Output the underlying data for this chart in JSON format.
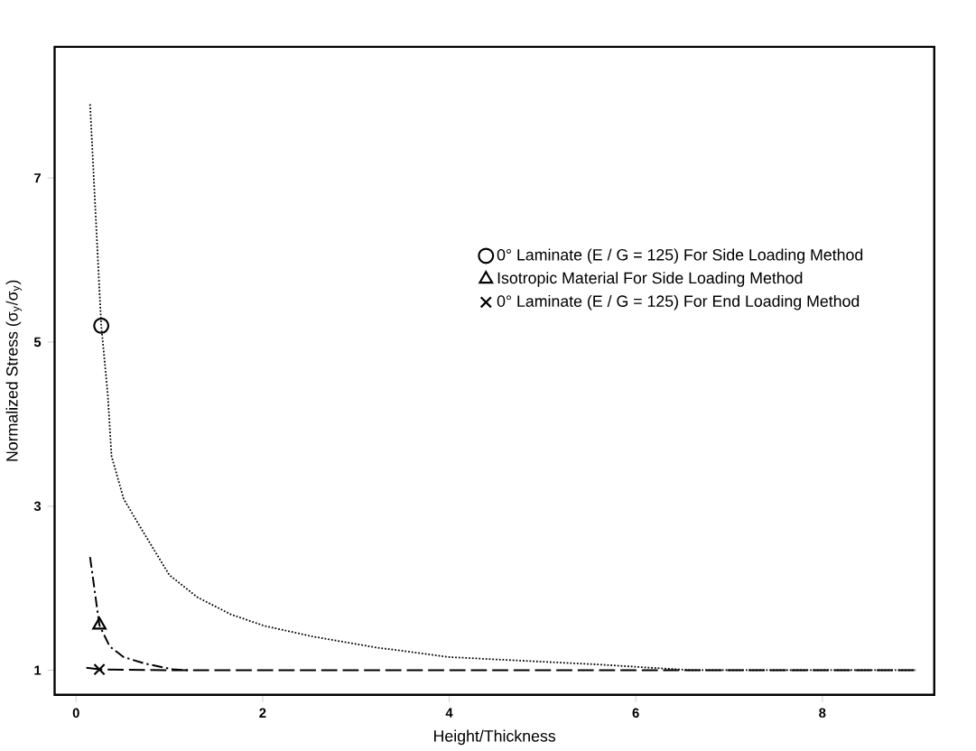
{
  "chart_data": {
    "type": "line",
    "xlabel": "Height/Thickness",
    "ylabel": "Normalized Stress (σ$_{y}$/σ$_{y}$)",
    "xlim": [
      -0.23,
      9.2
    ],
    "ylim": [
      0.7,
      8.6
    ],
    "xticks": [
      0,
      2,
      4,
      6,
      8
    ],
    "yticks": [
      1,
      3,
      5,
      7
    ],
    "legend": "top right",
    "series": [
      {
        "color": "#000000",
        "line_style": "dotted",
        "x": [
          0.15,
          0.27,
          0.34,
          0.38,
          0.51,
          0.68,
          1.0,
          1.3,
          1.66,
          2.02,
          2.54,
          3.2,
          4.0,
          5.59,
          6.6,
          9.0
        ],
        "values": [
          7.9,
          5.2,
          4.36,
          3.61,
          3.09,
          2.76,
          2.16,
          1.89,
          1.68,
          1.54,
          1.41,
          1.28,
          1.16,
          1.07,
          1.0,
          1.0
        ]
      },
      {
        "color": "#000000",
        "line_style": "dashdot",
        "x": [
          0.15,
          0.25,
          0.36,
          0.51,
          0.74,
          1.04,
          1.2
        ],
        "values": [
          2.38,
          1.55,
          1.29,
          1.16,
          1.08,
          1.01,
          1.0
        ]
      },
      {
        "color": "#000000",
        "line_style": "dashed",
        "x": [
          0.11,
          0.25,
          1.0,
          9.0
        ],
        "values": [
          1.03,
          1.01,
          1.0,
          1.0
        ]
      },
      {
        "type": "scatter",
        "name": "0° Laminate (E / G = 125) For Side Loading Method",
        "color": "#000000",
        "marker": "circle",
        "x": [
          0.27
        ],
        "values": [
          5.2
        ]
      },
      {
        "type": "scatter",
        "name": "Isotropic Material For Side Loading Method",
        "color": "#000000",
        "marker": "triangle",
        "x": [
          0.25
        ],
        "values": [
          1.55
        ]
      },
      {
        "type": "scatter",
        "name": "0° Laminate (E / G = 125) For End Loading Method",
        "color": "#000000",
        "marker": "cross",
        "x": [
          0.25
        ],
        "values": [
          1.01
        ]
      }
    ]
  }
}
